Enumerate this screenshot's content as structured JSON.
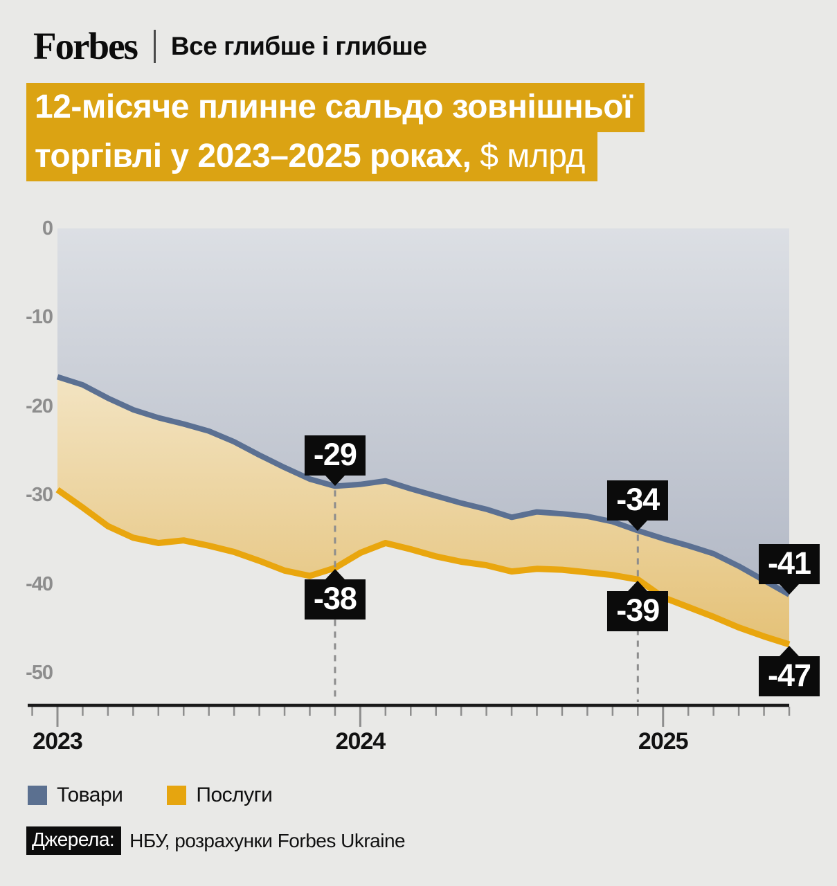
{
  "header": {
    "brand": "Forbes",
    "tagline": "Все глибше і глибше"
  },
  "title": {
    "line1": "12-місяче плинне сальдо зовнішньої",
    "line2_bold": "торгівлі у 2023–2025 роках,",
    "line2_light": " $ млрд"
  },
  "legend": [
    {
      "label": "Товари",
      "color": "#5b7090"
    },
    {
      "label": "Послуги",
      "color": "#e6a50f"
    }
  ],
  "source": {
    "label": "Джерела:",
    "text": "НБУ, розрахунки Forbes Ukraine"
  },
  "colors": {
    "background": "#e9e9e7",
    "banner": "#dba313",
    "goods_line": "#5b7092",
    "services_line": "#e9a60e",
    "goods_fill_top": "#dcdfe4",
    "goods_fill_bottom": "#a8afbe",
    "services_fill_top": "#fbf7ec",
    "services_fill_bottom": "#e2bc6c",
    "label_box": "#0b0b0b",
    "axis": "#1a1a1a",
    "tick": "#8e8e8e",
    "dashed": "#8d8d8d"
  },
  "chart_data": {
    "type": "area",
    "title": "12-місяче плинне сальдо зовнішньої торгівлі у 2023–2025 роках, $ млрд",
    "ylabel": "$ млрд",
    "ylim": [
      -53,
      0
    ],
    "grid": false,
    "x_monthly_start": "2023-01",
    "x_monthly_end": "2025-06",
    "y_ticks": [
      0,
      -10,
      -20,
      -30,
      -40,
      -50
    ],
    "x_year_ticks": [
      {
        "label": "2023",
        "month": 0
      },
      {
        "label": "2024",
        "month": 12
      },
      {
        "label": "2025",
        "month": 24
      }
    ],
    "series": [
      {
        "name": "Товари",
        "color": "#5b7092",
        "values": [
          -16.7,
          -17.6,
          -19.1,
          -20.4,
          -21.3,
          -22.0,
          -22.8,
          -24.0,
          -25.5,
          -26.9,
          -28.2,
          -29.0,
          -28.8,
          -28.4,
          -29.3,
          -30.1,
          -30.9,
          -31.6,
          -32.5,
          -31.9,
          -32.1,
          -32.4,
          -33.0,
          -34.0,
          -34.9,
          -35.7,
          -36.6,
          -38.0,
          -39.6,
          -41.2
        ]
      },
      {
        "name": "Послуги",
        "color": "#e9a60e",
        "values": [
          -29.4,
          -31.4,
          -33.5,
          -34.8,
          -35.4,
          -35.1,
          -35.7,
          -36.4,
          -37.4,
          -38.5,
          -39.1,
          -38.2,
          -36.5,
          -35.4,
          -36.1,
          -36.9,
          -37.5,
          -37.9,
          -38.6,
          -38.3,
          -38.4,
          -38.7,
          -39.0,
          -39.5,
          -41.5,
          -42.6,
          -43.7,
          -44.9,
          -45.9,
          -46.8
        ]
      }
    ],
    "annotations": [
      {
        "text": "-29",
        "series": 0,
        "month": 11,
        "placement": "above",
        "dashed": true
      },
      {
        "text": "-38",
        "series": 1,
        "month": 11,
        "placement": "below",
        "dashed": false
      },
      {
        "text": "-34",
        "series": 0,
        "month": 23,
        "placement": "above",
        "dashed": true
      },
      {
        "text": "-39",
        "series": 1,
        "month": 23,
        "placement": "below",
        "dashed": false
      },
      {
        "text": "-41",
        "series": 0,
        "month": 29,
        "placement": "above",
        "dashed": false
      },
      {
        "text": "-47",
        "series": 1,
        "month": 29,
        "placement": "below",
        "dashed": false
      }
    ]
  }
}
